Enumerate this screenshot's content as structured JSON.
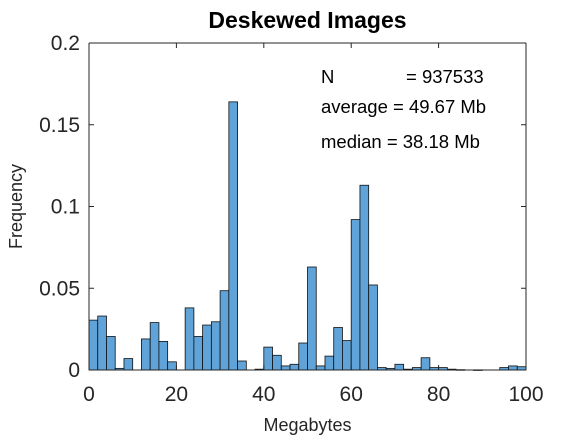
{
  "chart_data": {
    "type": "bar",
    "title": "Deskewed Images",
    "xlabel": "Megabytes",
    "ylabel": "Frequency",
    "xlim": [
      0,
      100
    ],
    "ylim": [
      0,
      0.2
    ],
    "xticks": [
      "0",
      "20",
      "40",
      "60",
      "80",
      "100"
    ],
    "yticks": [
      "0",
      "0.05",
      "0.1",
      "0.15",
      "0.2"
    ],
    "grid": false,
    "bar_color": "#5fa3d8",
    "bin_edges_start": 0,
    "bin_width": 2,
    "values": [
      0.0305,
      0.033,
      0.0205,
      0.001,
      0.007,
      0.0,
      0.019,
      0.029,
      0.0175,
      0.005,
      0.0,
      0.038,
      0.0205,
      0.0275,
      0.0295,
      0.0485,
      0.164,
      0.0055,
      0.0,
      0.0005,
      0.014,
      0.009,
      0.0025,
      0.0035,
      0.0165,
      0.063,
      0.0025,
      0.0085,
      0.026,
      0.018,
      0.092,
      0.113,
      0.052,
      0.0015,
      0.001,
      0.0035,
      0.0005,
      0.0015,
      0.0075,
      0.0015,
      0.0015,
      0.0005,
      0.0002,
      0.0,
      0.0001,
      0.0,
      0.0,
      0.0015,
      0.0025,
      0.002
    ],
    "annotations": {
      "n_label": "N",
      "n_value": "= 937533",
      "average": "average = 49.67 Mb",
      "median": "median  = 38.18 Mb"
    }
  }
}
